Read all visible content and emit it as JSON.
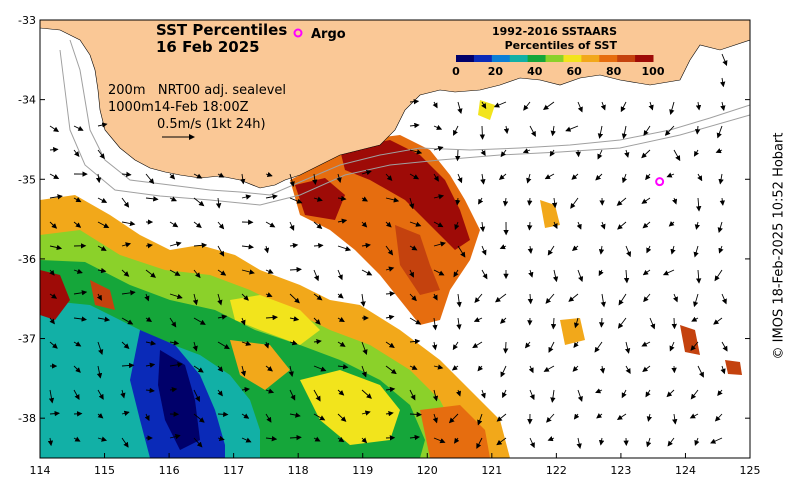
{
  "title": {
    "line1": "SST Percentiles",
    "line2": "16 Feb 2025"
  },
  "argo": {
    "label": "Argo",
    "marker_symbol": "o",
    "color": "#ff00ff",
    "float_position": {
      "lon": 123.6,
      "lat": -35.03
    }
  },
  "legend": {
    "line1": "1992-2016 SSTAARS",
    "line2": "Percentiles of SST",
    "ticks": [
      "0",
      "20",
      "40",
      "60",
      "80",
      "100"
    ],
    "colors": [
      "#00006a",
      "#0a2ab8",
      "#0b7fd6",
      "#12b0a6",
      "#15a63a",
      "#8bd12a",
      "#f2e41c",
      "#f2a81a",
      "#e66d0f",
      "#c4420e",
      "#9e0b07"
    ]
  },
  "annotations": {
    "contours": "200m   NRT00 adj. sealevel",
    "contours_2": "1000m14-Feb 18:00Z",
    "velocity_scale": "0.5m/s (1kt 24h)"
  },
  "axes": {
    "x_ticks": [
      "114",
      "115",
      "116",
      "117",
      "118",
      "119",
      "120",
      "121",
      "122",
      "123",
      "124",
      "125"
    ],
    "y_ticks": [
      "-33",
      "-34",
      "-35",
      "-36",
      "-37",
      "-38"
    ],
    "x_range": [
      114,
      125
    ],
    "y_range": [
      -38.5,
      -33
    ]
  },
  "credit": "© IMOS 18-Feb-2025 10:52 Hobart",
  "colors": {
    "land": "#fac896",
    "ocean_no_data": "#ffffff",
    "contour": "#a0a0a0"
  }
}
